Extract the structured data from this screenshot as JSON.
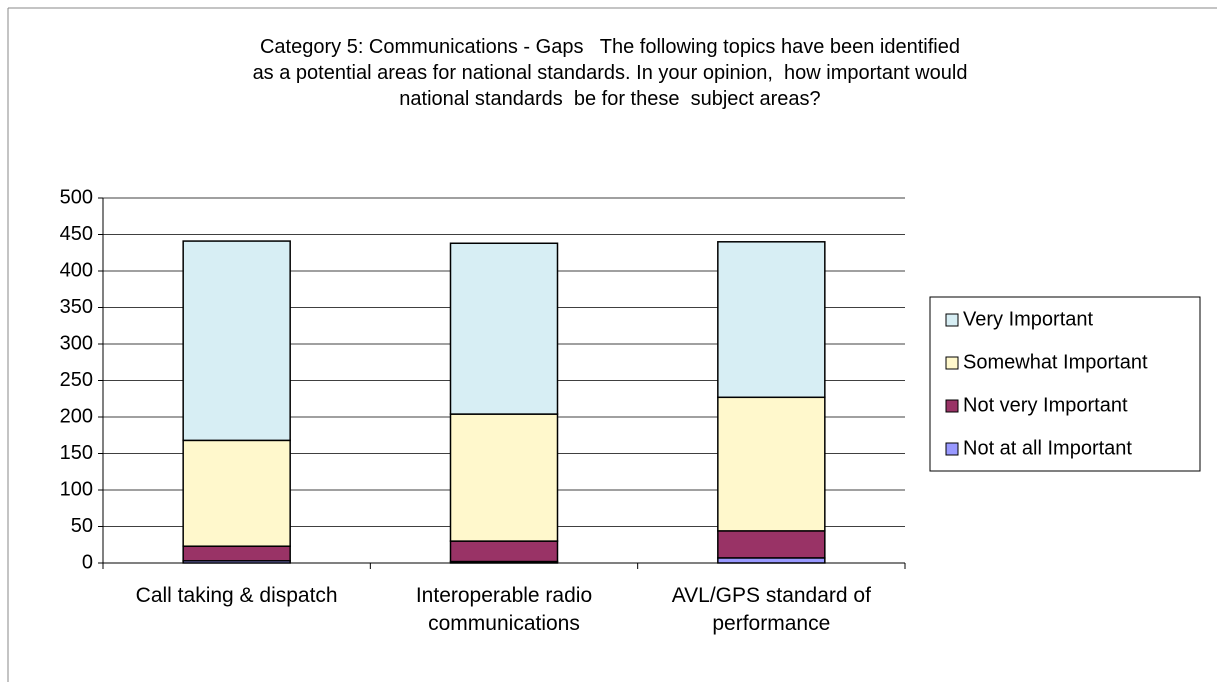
{
  "chart_data": {
    "type": "stacked_bar",
    "title": "Category 5: Communications - Gaps   The following topics have been identified\nas a potential areas for national standards. In your opinion,  how important would\nnational standards  be for these  subject areas?",
    "categories": [
      "Call taking & dispatch",
      "Interoperable radio communications",
      "AVL/GPS standard of performance"
    ],
    "series": [
      {
        "name": "Not at all Important",
        "color": "#9999ff",
        "values": [
          3,
          2,
          7
        ]
      },
      {
        "name": "Not very Important",
        "color": "#993366",
        "values": [
          20,
          28,
          37
        ]
      },
      {
        "name": "Somewhat Important",
        "color": "#fff8cc",
        "values": [
          145,
          174,
          183
        ]
      },
      {
        "name": "Very Important",
        "color": "#d7eef4",
        "values": [
          273,
          234,
          213
        ]
      }
    ],
    "ylim": [
      0,
      500
    ],
    "yticks": [
      0,
      50,
      100,
      150,
      200,
      250,
      300,
      350,
      400,
      450,
      500
    ],
    "grid": true,
    "legend": "right"
  }
}
